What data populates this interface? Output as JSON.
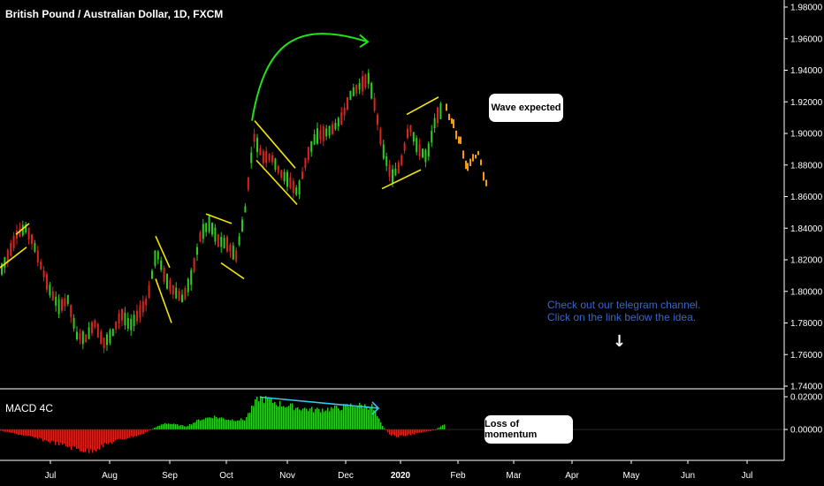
{
  "header": {
    "title": "British Pound / Australian Dollar, 1D, FXCM"
  },
  "macd_panel": {
    "title": "MACD 4C"
  },
  "callouts": {
    "wave": "Wave expected",
    "momentum": "Loss of momentum"
  },
  "promo": {
    "line1": "Check out our telegram channel.",
    "line2": "Click on the link below the idea."
  },
  "colors": {
    "background": "#000000",
    "bull": "#2ecc21",
    "bear": "#d8261f",
    "projection": "#f39c12",
    "annotation_yellow": "#f2e40c",
    "arrow_green": "#22e01a",
    "divergence_cyan": "#35c9e8",
    "axis_text": "#ffffff",
    "promo_text": "#3a66c4"
  },
  "icons": {
    "down_arrow": "down-arrow-icon"
  },
  "chart_data": [
    {
      "type": "candlestick",
      "title": "British Pound / Australian Dollar, 1D, FXCM",
      "x_ticks": [
        "Jul",
        "Aug",
        "Sep",
        "Oct",
        "Nov",
        "Dec",
        "2020",
        "Feb",
        "Mar",
        "Apr",
        "May",
        "Jun",
        "Jul"
      ],
      "y_ticks": [
        "1.98000",
        "1.96000",
        "1.94000",
        "1.92000",
        "1.90000",
        "1.88000",
        "1.86000",
        "1.84000",
        "1.82000",
        "1.80000",
        "1.78000",
        "1.76000",
        "1.74000"
      ],
      "ylim": [
        1.74,
        1.98
      ],
      "price_path": [
        [
          0,
          1.813
        ],
        [
          10,
          1.825
        ],
        [
          18,
          1.836
        ],
        [
          28,
          1.84
        ],
        [
          36,
          1.832
        ],
        [
          46,
          1.815
        ],
        [
          56,
          1.8
        ],
        [
          66,
          1.79
        ],
        [
          76,
          1.795
        ],
        [
          86,
          1.772
        ],
        [
          96,
          1.77
        ],
        [
          106,
          1.78
        ],
        [
          116,
          1.767
        ],
        [
          126,
          1.773
        ],
        [
          136,
          1.786
        ],
        [
          146,
          1.778
        ],
        [
          156,
          1.786
        ],
        [
          166,
          1.795
        ],
        [
          176,
          1.826
        ],
        [
          186,
          1.808
        ],
        [
          196,
          1.8
        ],
        [
          206,
          1.795
        ],
        [
          216,
          1.81
        ],
        [
          226,
          1.836
        ],
        [
          236,
          1.843
        ],
        [
          246,
          1.832
        ],
        [
          256,
          1.83
        ],
        [
          266,
          1.822
        ],
        [
          276,
          1.85
        ],
        [
          286,
          1.898
        ],
        [
          296,
          1.885
        ],
        [
          306,
          1.885
        ],
        [
          316,
          1.875
        ],
        [
          326,
          1.87
        ],
        [
          336,
          1.862
        ],
        [
          346,
          1.885
        ],
        [
          356,
          1.898
        ],
        [
          366,
          1.9
        ],
        [
          376,
          1.903
        ],
        [
          386,
          1.91
        ],
        [
          396,
          1.925
        ],
        [
          406,
          1.93
        ],
        [
          416,
          1.935
        ],
        [
          424,
          1.915
        ],
        [
          432,
          1.89
        ],
        [
          442,
          1.872
        ],
        [
          452,
          1.88
        ],
        [
          462,
          1.905
        ],
        [
          472,
          1.89
        ],
        [
          482,
          1.885
        ],
        [
          492,
          1.91
        ],
        [
          500,
          1.916
        ]
      ],
      "projection_path": [
        [
          504,
          1.916
        ],
        [
          512,
          1.905
        ],
        [
          520,
          1.895
        ],
        [
          528,
          1.878
        ],
        [
          534,
          1.884
        ],
        [
          540,
          1.888
        ],
        [
          546,
          1.875
        ],
        [
          550,
          1.866
        ]
      ],
      "annotations": [
        {
          "type": "trendline",
          "points": [
            [
              0,
              1.815
            ],
            [
              30,
              1.828
            ]
          ],
          "color": "yellow"
        },
        {
          "type": "trendline",
          "points": [
            [
              18,
              1.836
            ],
            [
              33,
              1.843
            ]
          ],
          "color": "yellow"
        },
        {
          "type": "trendline",
          "points": [
            [
              176,
              1.835
            ],
            [
              192,
              1.815
            ]
          ],
          "color": "yellow"
        },
        {
          "type": "trendline",
          "points": [
            [
              176,
              1.808
            ],
            [
              194,
              1.78
            ]
          ],
          "color": "yellow"
        },
        {
          "type": "trendline",
          "points": [
            [
              233,
              1.849
            ],
            [
              262,
              1.843
            ]
          ],
          "color": "yellow"
        },
        {
          "type": "trendline",
          "points": [
            [
              250,
              1.818
            ],
            [
              276,
              1.808
            ]
          ],
          "color": "yellow"
        },
        {
          "type": "trendline",
          "points": [
            [
              288,
              1.908
            ],
            [
              334,
              1.878
            ]
          ],
          "color": "yellow"
        },
        {
          "type": "trendline",
          "points": [
            [
              290,
              1.883
            ],
            [
              336,
              1.855
            ]
          ],
          "color": "yellow"
        },
        {
          "type": "trendline",
          "points": [
            [
              460,
              1.912
            ],
            [
              496,
              1.923
            ]
          ],
          "color": "yellow"
        },
        {
          "type": "trendline",
          "points": [
            [
              432,
              1.865
            ],
            [
              476,
              1.877
            ]
          ],
          "color": "yellow"
        },
        {
          "type": "curved_arrow",
          "from": [
            285,
            1.908
          ],
          "to": [
            416,
            1.958
          ],
          "color": "green"
        }
      ]
    },
    {
      "type": "histogram",
      "title": "MACD 4C",
      "y_ticks": [
        "0.02000",
        "0.00000"
      ],
      "ylim": [
        -0.014,
        0.02
      ],
      "bars_profile": [
        [
          0,
          -0.0008
        ],
        [
          30,
          -0.004
        ],
        [
          60,
          -0.008
        ],
        [
          80,
          -0.011
        ],
        [
          100,
          -0.0135
        ],
        [
          130,
          -0.007
        ],
        [
          160,
          -0.003
        ],
        [
          174,
          0.001
        ],
        [
          186,
          0.004
        ],
        [
          210,
          0.002
        ],
        [
          225,
          0.006
        ],
        [
          240,
          0.008
        ],
        [
          260,
          0.006
        ],
        [
          276,
          0.006
        ],
        [
          292,
          0.0195
        ],
        [
          305,
          0.0175
        ],
        [
          320,
          0.015
        ],
        [
          340,
          0.013
        ],
        [
          355,
          0.012
        ],
        [
          380,
          0.013
        ],
        [
          400,
          0.015
        ],
        [
          420,
          0.014
        ],
        [
          432,
          0.002
        ],
        [
          440,
          -0.003
        ],
        [
          450,
          -0.0045
        ],
        [
          470,
          -0.0025
        ],
        [
          490,
          -0.0005
        ],
        [
          502,
          0.003
        ]
      ],
      "annotations": [
        {
          "type": "divergence_line",
          "points": [
            [
              294,
              0.0198
            ],
            [
              428,
              0.013
            ]
          ],
          "color": "cyan"
        }
      ]
    }
  ]
}
